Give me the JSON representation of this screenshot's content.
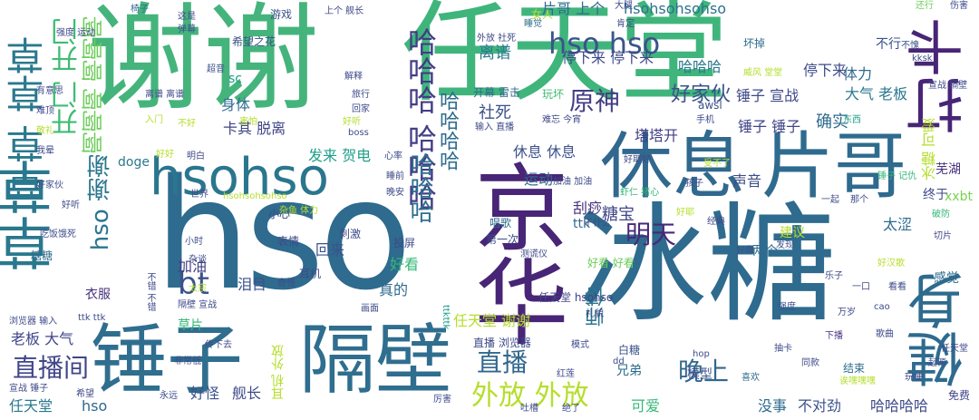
{
  "words": [
    {
      "text": "hso",
      "color": "#2e6b8e"
    },
    {
      "text": "冰糖",
      "color": "#2e6b8e"
    },
    {
      "text": "谢谢",
      "color": "#45b47c"
    },
    {
      "text": "任天堂",
      "color": "#3fb57c"
    },
    {
      "text": "隔壁",
      "color": "#2f6e8e"
    },
    {
      "text": "锤子",
      "color": "#2f6e8e"
    },
    {
      "text": "休息",
      "color": "#31688e"
    },
    {
      "text": "片哥",
      "color": "#2e6b8e"
    },
    {
      "text": "hsohso",
      "color": "#2a768e"
    },
    {
      "text": "草草",
      "color": "#2a788e"
    },
    {
      "text": "京华",
      "color": "#482576"
    },
    {
      "text": "健身",
      "color": "#2e6b8e"
    },
    {
      "text": "打卡",
      "color": "#482576"
    },
    {
      "text": "草草 草草",
      "color": "#2a788e"
    },
    {
      "text": "开门 开门",
      "color": "#3fbc73"
    },
    {
      "text": "啊啊啊 啊啊啊",
      "color": "#6ccd5a"
    },
    {
      "text": "hso hso",
      "color": "#3a548c"
    },
    {
      "text": "哈哈哈 哈哈哈",
      "color": "#433e85"
    },
    {
      "text": "哈哈哈",
      "color": "#2e6f8e"
    },
    {
      "text": "hso 谢谢",
      "color": "#2a768e"
    },
    {
      "text": "bt",
      "color": "#3b528b"
    },
    {
      "text": "直播间",
      "color": "#404588"
    },
    {
      "text": "直播",
      "color": "#31688e"
    },
    {
      "text": "外放 外放",
      "color": "#b5de2b"
    },
    {
      "text": "晚上",
      "color": "#31688e"
    },
    {
      "text": "原神",
      "color": "#433e85"
    },
    {
      "text": "明天",
      "color": "#482878"
    },
    {
      "text": "师傅",
      "color": "#2a768e"
    },
    {
      "text": "好家伙",
      "color": "#3b528b"
    },
    {
      "text": "哈哈哈哈",
      "color": "#2e6b8e"
    },
    {
      "text": "hsohsohsohso",
      "color": "#2c728e"
    },
    {
      "text": "片哥 上个",
      "color": "#2e6b8e"
    },
    {
      "text": "停下来 停下来",
      "color": "#3e4a89"
    },
    {
      "text": "停下来",
      "color": "#3e4a89"
    },
    {
      "text": "哈哈哈",
      "color": "#2a788e"
    },
    {
      "text": "锤子 宣战",
      "color": "#3e4a89"
    },
    {
      "text": "锤子 锤子",
      "color": "#404588"
    },
    {
      "text": "大气 老板",
      "color": "#2a788e"
    },
    {
      "text": "确实",
      "color": "#2e6b8e"
    },
    {
      "text": "冰糖 可爱",
      "color": "#b5de2b"
    },
    {
      "text": "体力",
      "color": "#31688e"
    },
    {
      "text": "芜湖",
      "color": "#46327e"
    },
    {
      "text": "xxbt",
      "color": "#7ad151"
    },
    {
      "text": "终于",
      "color": "#3e4a89"
    },
    {
      "text": "太涩",
      "color": "#2e6b8e"
    },
    {
      "text": "感觉",
      "color": "#2e6b8e"
    },
    {
      "text": "离谱",
      "color": "#2a788e"
    },
    {
      "text": "社死",
      "color": "#3b528b"
    },
    {
      "text": "身体",
      "color": "#2e6b8e"
    },
    {
      "text": "卡其 脱离",
      "color": "#404588"
    },
    {
      "text": "休息 休息",
      "color": "#3b528b"
    },
    {
      "text": "塔塔开",
      "color": "#433e85"
    },
    {
      "text": "发来 贺电",
      "color": "#1f9e89"
    },
    {
      "text": "运动",
      "color": "#31688e"
    },
    {
      "text": "声音",
      "color": "#3e4a89"
    },
    {
      "text": "刮痧",
      "color": "#46327e"
    },
    {
      "text": "糖宝",
      "color": "#404588"
    },
    {
      "text": "加油",
      "color": "#433e85"
    },
    {
      "text": "泪目",
      "color": "#3b528b"
    },
    {
      "text": "真的",
      "color": "#2e6b8e"
    },
    {
      "text": "回来",
      "color": "#3b528b"
    },
    {
      "text": "好看",
      "color": "#35b779"
    },
    {
      "text": "任天堂 谢谢",
      "color": "#b5de2b"
    },
    {
      "text": "老板 大气",
      "color": "#404588"
    },
    {
      "text": "任天堂",
      "color": "#2a788e"
    },
    {
      "text": "hso",
      "color": "#31688e"
    },
    {
      "text": "衣服",
      "color": "#46327e"
    },
    {
      "text": "舰长",
      "color": "#3e4a89"
    },
    {
      "text": "好怪",
      "color": "#3b528b"
    },
    {
      "text": "模型",
      "color": "#3b528b"
    },
    {
      "text": "兄弟",
      "color": "#2e6b8e"
    },
    {
      "text": "可爱",
      "color": "#35b779"
    },
    {
      "text": "没事",
      "color": "#2e6b8e"
    },
    {
      "text": "不对劲",
      "color": "#3b528b"
    },
    {
      "text": "哈哈哈哈",
      "color": "#3e4a89"
    },
    {
      "text": "免费",
      "color": "#404588"
    },
    {
      "text": "doge",
      "color": "#2a788e"
    },
    {
      "text": "糖糖",
      "color": "#2e6b8e"
    },
    {
      "text": "表情",
      "color": "#3e4a89"
    },
    {
      "text": "草片",
      "color": "#35b779"
    },
    {
      "text": "ttk",
      "color": "#31688e"
    },
    {
      "text": "awsl",
      "color": "#3b528b"
    },
    {
      "text": "玩坏",
      "color": "#3fbc73"
    },
    {
      "text": "希望之花",
      "color": "#3b528b"
    },
    {
      "text": "游戏",
      "color": "#3b528b"
    },
    {
      "text": "女人",
      "color": "#b5de2b"
    },
    {
      "text": "开幕 雷击",
      "color": "#2e6b8e"
    },
    {
      "text": "坏掉",
      "color": "#2e6b8e"
    },
    {
      "text": "不行",
      "color": "#3b528b"
    },
    {
      "text": "两个",
      "color": "#2e6b8e"
    },
    {
      "text": "建议",
      "color": "#b5de2b"
    },
    {
      "text": "好看 好看",
      "color": "#6ccd5a"
    },
    {
      "text": "耳机 外放",
      "color": "#b5de2b"
    },
    {
      "text": "结束",
      "color": "#2e6b8e"
    },
    {
      "text": "白糖",
      "color": "#3b528b"
    },
    {
      "text": "直播 浏览器",
      "color": "#3e4a89"
    },
    {
      "text": "任天堂 hsohso",
      "color": "#404588"
    },
    {
      "text": "耳机",
      "color": "#3e4a89"
    },
    {
      "text": "小心",
      "color": "#404588"
    },
    {
      "text": "刺激",
      "color": "#3e4a89"
    },
    {
      "text": "投屏",
      "color": "#3e4a89"
    },
    {
      "text": "唱歌",
      "color": "#2e6b8e"
    },
    {
      "text": "第一次",
      "color": "#3e4a89"
    },
    {
      "text": "发现",
      "color": "#3b528b"
    },
    {
      "text": "好像",
      "color": "#3b528b"
    },
    {
      "text": "喜欢",
      "color": "#2e6b8e"
    },
    {
      "text": "下播",
      "color": "#46327e"
    },
    {
      "text": "万岁",
      "color": "#3e4a89"
    },
    {
      "text": "强度",
      "color": "#3b528b"
    },
    {
      "text": "好汉歌",
      "color": "#b5de2b"
    },
    {
      "text": "破防",
      "color": "#35b779"
    },
    {
      "text": "切片",
      "color": "#404588"
    },
    {
      "text": "椅子",
      "color": "#2e6b8e"
    },
    {
      "text": "这是",
      "color": "#3e4a89"
    },
    {
      "text": "弹幕",
      "color": "#3b528b"
    },
    {
      "text": "上个 舰长",
      "color": "#404588"
    },
    {
      "text": "大腿",
      "color": "#3e4a89"
    },
    {
      "text": "肯定",
      "color": "#3e4a89"
    },
    {
      "text": "还行",
      "color": "#6ccd5a"
    },
    {
      "text": "伤害",
      "color": "#3e4a89"
    },
    {
      "text": "强度 运动",
      "color": "#3e4a89"
    },
    {
      "text": "外放 社死",
      "color": "#3e4a89"
    },
    {
      "text": "睡觉",
      "color": "#2e6b8e"
    },
    {
      "text": "不愧",
      "color": "#3b528b"
    },
    {
      "text": "kksk",
      "color": "#3e4a89"
    },
    {
      "text": "超音",
      "color": "#3b528b"
    },
    {
      "text": "解释",
      "color": "#3e4a89"
    },
    {
      "text": "害怕",
      "color": "#b5de2b"
    },
    {
      "text": "难忘 今宵",
      "color": "#3e4a89"
    },
    {
      "text": "东西",
      "color": "#1f9e89"
    },
    {
      "text": "手机",
      "color": "#3e4a89"
    },
    {
      "text": "好听",
      "color": "#b5de2b"
    },
    {
      "text": "不好",
      "color": "#b5de2b"
    },
    {
      "text": "boss",
      "color": "#3e4a89"
    },
    {
      "text": "输入 直播",
      "color": "#3e4a89"
    },
    {
      "text": "好好",
      "color": "#b5de2b"
    },
    {
      "text": "明白",
      "color": "#3e4a89"
    },
    {
      "text": "心率",
      "color": "#3e4a89"
    },
    {
      "text": "受不了",
      "color": "#b5de2b"
    },
    {
      "text": "孩子",
      "color": "#3e4a89"
    },
    {
      "text": "杂鱼 体力",
      "color": "#b5de2b"
    },
    {
      "text": "hsohsohsohso",
      "color": "#b5de2b"
    },
    {
      "text": "干什么",
      "color": "#3e4a89"
    },
    {
      "text": "测谎仪",
      "color": "#3e4a89"
    },
    {
      "text": "礼貌",
      "color": "#3e4a89"
    },
    {
      "text": "模式",
      "color": "#3e4a89"
    },
    {
      "text": "红莲",
      "color": "#3e4a89"
    },
    {
      "text": "厉害",
      "color": "#3e4a89"
    },
    {
      "text": "永远",
      "color": "#3e4a89"
    },
    {
      "text": "希望",
      "color": "#3e4a89"
    },
    {
      "text": "传下去",
      "color": "#3e4a89"
    },
    {
      "text": "非常低",
      "color": "#3e4a89"
    },
    {
      "text": "ttkttk",
      "color": "#1f9e89"
    },
    {
      "text": "ttk ttk",
      "color": "#3e4a89"
    },
    {
      "text": "浏览器 输入",
      "color": "#3e4a89"
    },
    {
      "text": "宣战 锤子",
      "color": "#3e4a89"
    },
    {
      "text": "隔壁 宣战",
      "color": "#3e4a89"
    },
    {
      "text": "画面",
      "color": "#3e4a89"
    },
    {
      "text": "小时",
      "color": "#3e4a89"
    },
    {
      "text": "奇怪",
      "color": "#3e4a89"
    },
    {
      "text": "不错 不错",
      "color": "#3e4a89"
    },
    {
      "text": "杂谈",
      "color": "#3e4a89"
    },
    {
      "text": "太宗",
      "color": "#b5de2b"
    },
    {
      "text": "cao",
      "color": "#3e4a89"
    },
    {
      "text": "hop",
      "color": "#3e4a89"
    },
    {
      "text": "dd",
      "color": "#3e4a89"
    },
    {
      "text": "sc",
      "color": "#1f9e89"
    },
    {
      "text": "威风 堂堂",
      "color": "#b5de2b"
    },
    {
      "text": "宣战 隔壁",
      "color": "#3e4a89"
    },
    {
      "text": "好耶好",
      "color": "#3e4a89"
    },
    {
      "text": "虾仁 猪心",
      "color": "#35b779"
    },
    {
      "text": "锤子 记仇",
      "color": "#35b779"
    },
    {
      "text": "世界",
      "color": "#3e4a89"
    },
    {
      "text": "诶嘿嘿嘿",
      "color": "#b5de2b"
    },
    {
      "text": "起源",
      "color": "#3e4a89"
    },
    {
      "text": "玩梗",
      "color": "#3e4a89"
    },
    {
      "text": "歌曲",
      "color": "#3e4a89"
    },
    {
      "text": "任天堂",
      "color": "#3e4a89"
    },
    {
      "text": "吃饭",
      "color": "#3e4a89"
    },
    {
      "text": "饿死",
      "color": "#3e4a89"
    },
    {
      "text": "有意思",
      "color": "#3e4a89"
    },
    {
      "text": "难顶",
      "color": "#3e4a89"
    },
    {
      "text": "敬礼",
      "color": "#b5de2b"
    },
    {
      "text": "我晕",
      "color": "#3e4a89"
    },
    {
      "text": "好家伙",
      "color": "#3e4a89"
    },
    {
      "text": "好听",
      "color": "#3e4a89"
    },
    {
      "text": "离谱 离谱",
      "color": "#3e4a89"
    },
    {
      "text": "入门",
      "color": "#b5de2b"
    },
    {
      "text": "旅行",
      "color": "#3e4a89"
    },
    {
      "text": "回家",
      "color": "#3e4a89"
    },
    {
      "text": "睡前",
      "color": "#3e4a89"
    },
    {
      "text": "晚安",
      "color": "#3e4a89"
    },
    {
      "text": "加油 加油",
      "color": "#3e4a89"
    },
    {
      "text": "一起",
      "color": "#3e4a89"
    },
    {
      "text": "那个",
      "color": "#3e4a89"
    },
    {
      "text": "好耶",
      "color": "#b5de2b"
    },
    {
      "text": "经典",
      "color": "#3e4a89"
    },
    {
      "text": "乐子",
      "color": "#3e4a89"
    },
    {
      "text": "一口",
      "color": "#3e4a89"
    },
    {
      "text": "看看",
      "color": "#3e4a89"
    },
    {
      "text": "抽卡",
      "color": "#3e4a89"
    },
    {
      "text": "同款",
      "color": "#3e4a89"
    },
    {
      "text": "吐槽",
      "color": "#3e4a89"
    },
    {
      "text": "绝了",
      "color": "#3e4a89"
    }
  ]
}
